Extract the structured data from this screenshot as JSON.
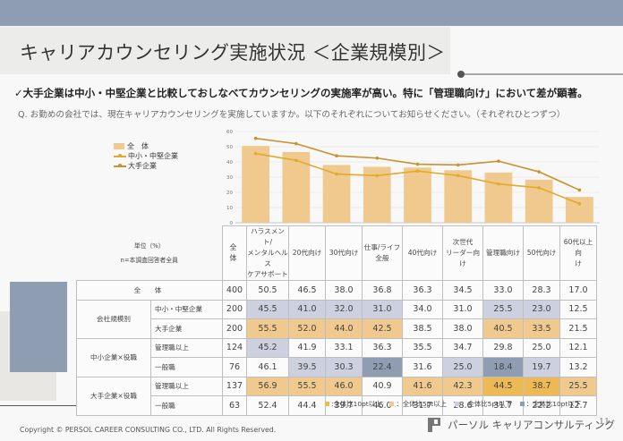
{
  "page": {
    "title": "キャリアカウンセリング実施状況 ＜企業規模別＞",
    "headline": "✓大手企業は中小・中堅企業と比較しておしなべてカウンセリングの実施率が高い。特に「管理職向け」において差が顕著。",
    "question": "Q. お勤めの会社では、現在キャリアカウンセリングを実施していますか。以下のそれぞれについてお知らせください。（それぞれひとつずつ）",
    "copyright": "Copyright © PERSOL CAREER CONSULTING CO., LTD. All Rights Reserved.",
    "brand": "パーソル キャリアコンサルティング",
    "page_number": "11",
    "colors": {
      "header_bar": "#8f9db3",
      "bar": "#f0c98e",
      "line_sme": "#e2aa2c",
      "line_large": "#c6932f",
      "up10": "#ecb955",
      "up5": "#f0c98e",
      "down5": "#ccd0df",
      "down10": "#8f9db3"
    }
  },
  "chart_data": {
    "type": "bar",
    "title": "",
    "xlabel": "",
    "ylabel": "",
    "ylim": [
      0,
      60
    ],
    "yticks": [
      "0",
      "10",
      "20",
      "30",
      "40",
      "50",
      "60"
    ],
    "grid": true,
    "legend_position": "top-left",
    "categories": [
      "ハラスメント/メンタルヘルスケアサポート",
      "20代向け",
      "30代向け",
      "仕事/ライフ全般",
      "40代向け",
      "次世代リーダー向け",
      "管理職向け",
      "50代向け",
      "60代以上向け"
    ],
    "series": [
      {
        "name": "全　体",
        "kind": "bar",
        "values": [
          50.5,
          46.5,
          38.0,
          36.8,
          36.3,
          34.5,
          33.0,
          28.3,
          17.0
        ]
      },
      {
        "name": "中小・中堅企業",
        "kind": "line",
        "values": [
          45.5,
          41.0,
          32.0,
          31.0,
          34.0,
          31.0,
          25.5,
          23.0,
          12.5
        ]
      },
      {
        "name": "大手企業",
        "kind": "line",
        "values": [
          55.5,
          52.0,
          44.0,
          42.5,
          38.5,
          38.0,
          40.5,
          33.5,
          21.5
        ]
      }
    ]
  },
  "table": {
    "unit_label": "単位（%）",
    "base_label": "n=本調査回答者全員",
    "n_header": "全　体",
    "columns": [
      [
        "ハラスメント/",
        "メンタルヘルス",
        "ケアサポート"
      ],
      [
        "20代向け"
      ],
      [
        "30代向け"
      ],
      [
        "仕事/ライフ",
        "全般"
      ],
      [
        "40代向け"
      ],
      [
        "次世代",
        "リーダー向",
        "け"
      ],
      [
        "管理職向け"
      ],
      [
        "50代向け"
      ],
      [
        "60代以上向",
        "け"
      ]
    ],
    "total_row": {
      "label": "全　体",
      "n": "400",
      "values": [
        "50.5",
        "46.5",
        "38.0",
        "36.8",
        "36.3",
        "34.5",
        "33.0",
        "28.3",
        "17.0"
      ],
      "codes": [
        "",
        "",
        "",
        "",
        "",
        "",
        "",
        "",
        ""
      ]
    },
    "groups": [
      {
        "label": "会社規模別",
        "rows": [
          {
            "label": "中小・中堅企業",
            "n": "200",
            "values": [
              "45.5",
              "41.0",
              "32.0",
              "31.0",
              "34.0",
              "31.0",
              "25.5",
              "23.0",
              "12.5"
            ],
            "codes": [
              "d5",
              "d5",
              "d5",
              "d5",
              "",
              "",
              "d5",
              "d5",
              ""
            ]
          },
          {
            "label": "大手企業",
            "n": "200",
            "values": [
              "55.5",
              "52.0",
              "44.0",
              "42.5",
              "38.5",
              "38.0",
              "40.5",
              "33.5",
              "21.5"
            ],
            "codes": [
              "u5",
              "u5",
              "u5",
              "u5",
              "",
              "",
              "u5",
              "u5",
              ""
            ]
          }
        ]
      },
      {
        "label": "中小企業×役職",
        "rows": [
          {
            "label": "管理職以上",
            "n": "124",
            "values": [
              "45.2",
              "41.9",
              "33.1",
              "36.3",
              "35.5",
              "34.7",
              "29.8",
              "25.0",
              "12.1"
            ],
            "codes": [
              "d5",
              "",
              "",
              "",
              "",
              "",
              "",
              "",
              ""
            ]
          },
          {
            "label": "一般職",
            "n": "76",
            "values": [
              "46.1",
              "39.5",
              "30.3",
              "22.4",
              "31.6",
              "25.0",
              "18.4",
              "19.7",
              "13.2"
            ],
            "codes": [
              "",
              "d5",
              "d5",
              "d10",
              "",
              "d5",
              "d10",
              "d5",
              ""
            ]
          }
        ]
      },
      {
        "label": "大手企業×役職",
        "rows": [
          {
            "label": "管理職以上",
            "n": "137",
            "values": [
              "56.9",
              "55.5",
              "46.0",
              "40.9",
              "41.6",
              "42.3",
              "44.5",
              "38.7",
              "25.5"
            ],
            "codes": [
              "u5",
              "u5",
              "u5",
              "",
              "u5",
              "u5",
              "u10",
              "u10",
              "u5"
            ]
          },
          {
            "label": "一般職",
            "n": "63",
            "values": [
              "52.4",
              "44.4",
              "39.7",
              "46.0",
              "31.7",
              "28.6",
              "31.7",
              "22.2",
              "12.7"
            ],
            "codes": [
              "",
              "",
              "",
              "",
              "",
              "",
              "",
              "",
              ""
            ]
          }
        ]
      }
    ]
  },
  "key": [
    {
      "code": "u10",
      "label": ":全体比10pt以上"
    },
    {
      "code": "u5",
      "label": "：全体比5pt以上"
    },
    {
      "code": "d5",
      "label": "：全体比5pt以下"
    },
    {
      "code": "d10",
      "label": "：全体比10pt以下"
    }
  ]
}
